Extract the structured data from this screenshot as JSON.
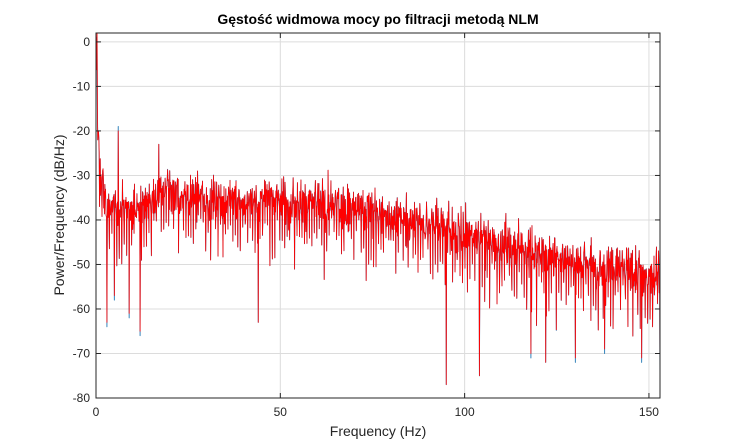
{
  "chart_data": {
    "type": "line",
    "title": "Gęstość widmowa mocy po filtracji metodą NLM",
    "xlabel": "Frequency (Hz)",
    "ylabel": "Power/Frequency (dB/Hz)",
    "xlim": [
      0,
      153
    ],
    "ylim": [
      -80,
      2
    ],
    "xticks": [
      0,
      50,
      100,
      150
    ],
    "yticks": [
      0,
      -10,
      -20,
      -30,
      -40,
      -50,
      -60,
      -70,
      -80
    ],
    "grid": true,
    "legend": "none",
    "series": [
      {
        "color": "#1f77b4",
        "envelope": {
          "x": [
            0,
            0.5,
            1,
            2,
            3,
            5,
            10,
            15,
            18,
            20,
            25,
            30,
            40,
            50,
            60,
            70,
            80,
            90,
            100,
            110,
            120,
            130,
            140,
            150,
            153
          ],
          "y": [
            0,
            -18,
            -28,
            -33,
            -37,
            -38,
            -37,
            -36,
            -33,
            -34,
            -35,
            -35,
            -36,
            -35,
            -36,
            -37,
            -39,
            -40,
            -43,
            -45,
            -47,
            -49,
            -50,
            -52,
            -52
          ]
        },
        "peaks": [
          [
            0.3,
            1
          ],
          [
            6,
            -19
          ],
          [
            17,
            -23
          ],
          [
            12,
            -25
          ],
          [
            44,
            -31
          ]
        ],
        "dips": [
          [
            3,
            -64
          ],
          [
            5,
            -58
          ],
          [
            9,
            -62
          ],
          [
            12,
            -66
          ],
          [
            44,
            -63
          ],
          [
            95,
            -77
          ],
          [
            104,
            -75
          ],
          [
            118,
            -71
          ],
          [
            122,
            -72
          ],
          [
            130,
            -72
          ],
          [
            138,
            -70
          ],
          [
            148,
            -72
          ],
          [
            153,
            -78
          ]
        ]
      },
      {
        "color": "#ff0000",
        "envelope": {
          "x": [
            0,
            0.5,
            1,
            2,
            3,
            5,
            10,
            15,
            18,
            20,
            25,
            30,
            40,
            50,
            60,
            70,
            80,
            90,
            100,
            110,
            120,
            130,
            140,
            150,
            153
          ],
          "y": [
            0,
            -18,
            -28,
            -33,
            -37,
            -38,
            -37,
            -36,
            -33,
            -34,
            -35,
            -35,
            -36,
            -35,
            -36,
            -37,
            -39,
            -40,
            -43,
            -45,
            -47,
            -49,
            -50,
            -52,
            -52
          ]
        },
        "peaks": [
          [
            0.3,
            2
          ],
          [
            6,
            -20
          ],
          [
            17,
            -23
          ],
          [
            12,
            -25
          ],
          [
            44,
            -31
          ]
        ],
        "dips": [
          [
            3,
            -63
          ],
          [
            5,
            -57
          ],
          [
            9,
            -61
          ],
          [
            12,
            -65
          ],
          [
            44,
            -63
          ],
          [
            95,
            -77
          ],
          [
            104,
            -75
          ],
          [
            118,
            -70
          ],
          [
            122,
            -72
          ],
          [
            130,
            -71
          ],
          [
            138,
            -69
          ],
          [
            148,
            -71
          ],
          [
            153,
            -78
          ]
        ]
      }
    ]
  }
}
